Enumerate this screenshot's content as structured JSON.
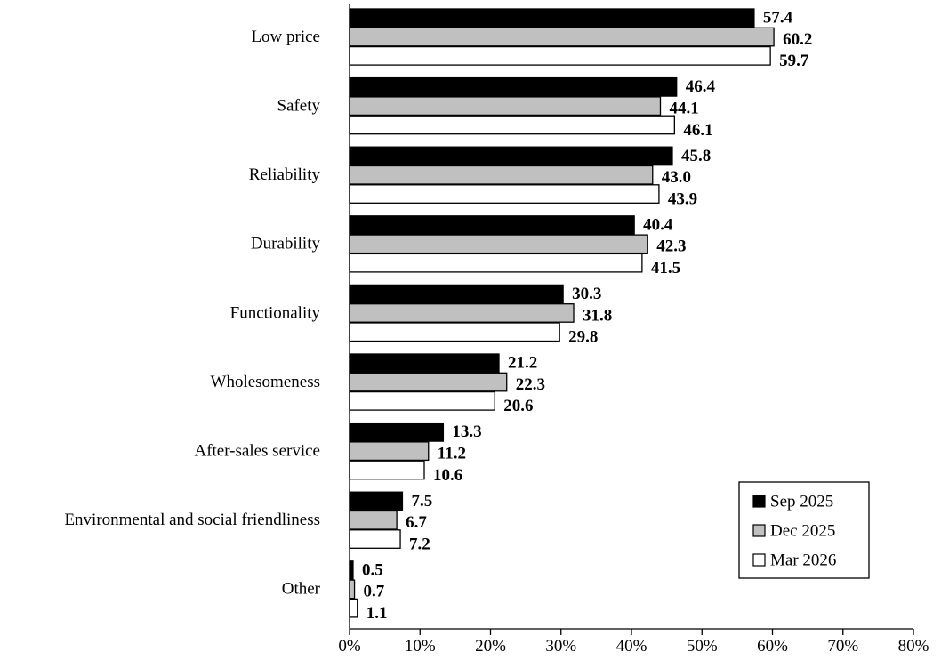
{
  "chart_data": {
    "type": "bar",
    "orientation": "horizontal",
    "categories": [
      "Low price",
      "Safety",
      "Reliability",
      "Durability",
      "Functionality",
      "Wholesomeness",
      "After-sales service",
      "Environmental and social friendliness",
      "Other"
    ],
    "series": [
      {
        "name": "Sep 2025",
        "color": "#000000",
        "values": [
          57.4,
          46.4,
          45.8,
          40.4,
          30.3,
          21.2,
          13.3,
          7.5,
          0.5
        ],
        "labels": [
          "57.4",
          "46.4",
          "45.8",
          "40.4",
          "30.3",
          "21.2",
          "13.3",
          "7.5",
          "0.5"
        ]
      },
      {
        "name": "Dec 2025",
        "color": "#c0c0c0",
        "values": [
          60.2,
          44.1,
          43.0,
          42.3,
          31.8,
          22.3,
          11.2,
          6.7,
          0.7
        ],
        "labels": [
          "60.2",
          "44.1",
          "43.0",
          "42.3",
          "31.8",
          "22.3",
          "11.2",
          "6.7",
          "0.7"
        ]
      },
      {
        "name": "Mar 2026",
        "color": "#ffffff",
        "values": [
          59.7,
          46.1,
          43.9,
          41.5,
          29.8,
          20.6,
          10.6,
          7.2,
          1.1
        ],
        "labels": [
          "59.7",
          "46.1",
          "43.9",
          "41.5",
          "29.8",
          "20.6",
          "10.6",
          "7.2",
          "1.1"
        ]
      }
    ],
    "xlim": [
      0,
      80
    ],
    "x_ticks": [
      0,
      10,
      20,
      30,
      40,
      50,
      60,
      70,
      80
    ],
    "x_tick_labels": [
      "0%",
      "10%",
      "20%",
      "30%",
      "40%",
      "50%",
      "60%",
      "70%",
      "80%"
    ],
    "title": "",
    "xlabel": "",
    "ylabel": "",
    "grid": false,
    "legend_position": "bottom-right"
  }
}
